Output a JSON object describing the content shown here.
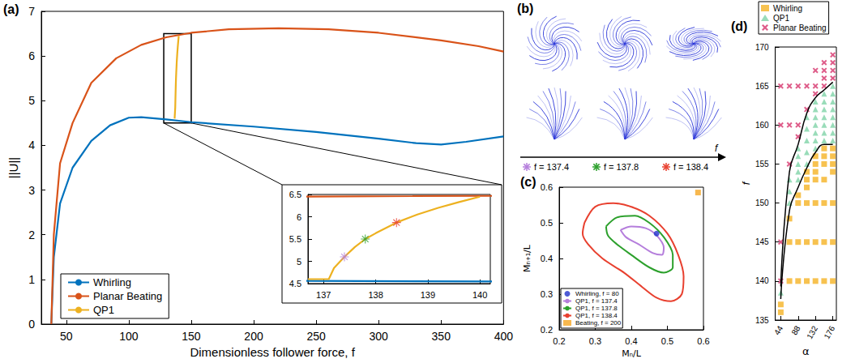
{
  "chart_data": [
    {
      "type": "line",
      "title": "(a)",
      "x_label": "Dimensionless follower force, f",
      "y_label": "||U||",
      "xlim": [
        30,
        400
      ],
      "xticks": [
        50,
        100,
        150,
        200,
        250,
        300,
        350,
        400
      ],
      "ylim": [
        0,
        7
      ],
      "yticks": [
        0,
        1,
        2,
        3,
        4,
        5,
        6,
        7
      ],
      "grid": false,
      "legend": "lower left",
      "series": [
        {
          "name": "Whirling",
          "color": "#0072BD",
          "x": [
            38,
            40,
            45,
            55,
            70,
            85,
            100,
            110,
            130,
            150,
            200,
            250,
            300,
            330,
            350,
            370,
            400
          ],
          "values": [
            0,
            1.5,
            2.7,
            3.5,
            4.1,
            4.45,
            4.62,
            4.63,
            4.58,
            4.52,
            4.42,
            4.3,
            4.15,
            4.05,
            4.02,
            4.08,
            4.2
          ]
        },
        {
          "name": "Planar Beating",
          "color": "#D95319",
          "x": [
            38,
            40,
            45,
            55,
            70,
            90,
            110,
            130,
            150,
            180,
            220,
            260,
            300,
            350,
            380,
            400
          ],
          "values": [
            0,
            2,
            3.6,
            4.5,
            5.4,
            5.95,
            6.25,
            6.42,
            6.52,
            6.6,
            6.62,
            6.6,
            6.52,
            6.35,
            6.22,
            6.1
          ]
        },
        {
          "name": "QP1",
          "color": "#EDB120",
          "x": [
            136.7,
            137.1,
            137.2,
            137.4,
            137.6,
            137.8,
            138,
            138.4,
            138.8,
            139.2,
            139.6,
            140
          ],
          "values": [
            4.6,
            4.6,
            4.85,
            5.1,
            5.32,
            5.5,
            5.63,
            5.87,
            6.05,
            6.2,
            6.33,
            6.45
          ]
        }
      ],
      "zoom_box": {
        "xlim": [
          128,
          150
        ],
        "ylim": [
          4.5,
          6.5
        ]
      },
      "inset": {
        "xlim": [
          136.7,
          140.2
        ],
        "xticks": [
          137,
          138,
          139,
          140
        ],
        "ylim": [
          4.5,
          6.5
        ],
        "yticks": [
          4.5,
          5,
          5.5,
          6,
          6.5
        ],
        "marker": "star",
        "highlights": [
          {
            "x": 137.4,
            "value": 5.1,
            "color": "#B57EDC"
          },
          {
            "x": 137.8,
            "value": 5.5,
            "color": "#2CA02C"
          },
          {
            "x": 138.4,
            "value": 5.87,
            "color": "#E8402F"
          }
        ]
      }
    },
    {
      "type": "image",
      "title": "(b)",
      "marker": "star",
      "labels": [
        "f = 137.4",
        "f = 137.8",
        "f = 138.4"
      ],
      "colors": [
        "#B57EDC",
        "#2CA02C",
        "#E8402F"
      ],
      "axis_label": "f",
      "color": "#2A35D8"
    },
    {
      "type": "scatter",
      "title": "(c)",
      "x_label": "Mₙ/L",
      "y_label": "Mₙ₊₁/L",
      "xlim": [
        0.2,
        0.6
      ],
      "xticks": [
        0.2,
        0.3,
        0.4,
        0.5,
        0.6
      ],
      "ylim": [
        0.2,
        0.6
      ],
      "yticks": [
        0.2,
        0.3,
        0.4,
        0.5,
        0.6
      ],
      "grid": false,
      "legend": "lower left",
      "series": [
        {
          "name": "Whirling, f = 80",
          "type": "scatter",
          "marker": "circle",
          "color": "#2233CC",
          "x": [
            0.47
          ],
          "values": [
            0.47
          ]
        },
        {
          "name": "QP1, f = 137.4",
          "type": "line",
          "line_style": "solid",
          "color": "#B57EDC",
          "x": [
            0.37,
            0.4,
            0.44,
            0.47,
            0.49,
            0.485,
            0.46,
            0.42,
            0.385,
            0.37
          ],
          "values": [
            0.48,
            0.49,
            0.485,
            0.465,
            0.43,
            0.41,
            0.415,
            0.44,
            0.46,
            0.48
          ]
        },
        {
          "name": "QP1, f = 137.8",
          "type": "line",
          "line_style": "solid",
          "color": "#2CA02C",
          "x": [
            0.33,
            0.36,
            0.41,
            0.45,
            0.49,
            0.515,
            0.515,
            0.49,
            0.45,
            0.4,
            0.36,
            0.335,
            0.33
          ],
          "values": [
            0.49,
            0.515,
            0.52,
            0.5,
            0.46,
            0.41,
            0.375,
            0.36,
            0.375,
            0.41,
            0.44,
            0.465,
            0.49
          ]
        },
        {
          "name": "QP1, f = 138.4",
          "type": "line",
          "line_style": "solid",
          "color": "#E8402F",
          "x": [
            0.27,
            0.3,
            0.35,
            0.4,
            0.45,
            0.5,
            0.53,
            0.545,
            0.54,
            0.51,
            0.47,
            0.43,
            0.38,
            0.32,
            0.28,
            0.265,
            0.27
          ],
          "values": [
            0.5,
            0.545,
            0.555,
            0.545,
            0.52,
            0.47,
            0.41,
            0.35,
            0.3,
            0.28,
            0.29,
            0.32,
            0.36,
            0.4,
            0.44,
            0.47,
            0.5
          ]
        },
        {
          "name": "Beating, f = 200",
          "type": "scatter",
          "marker": "square",
          "color": "#F5A623",
          "x": [
            0.585
          ],
          "values": [
            0.585
          ]
        }
      ]
    },
    {
      "type": "scatter",
      "title": "(d)",
      "x_label": "α",
      "y_label": "f",
      "xlim": [
        30,
        185
      ],
      "xticks": [
        44,
        88,
        132,
        176
      ],
      "ylim": [
        135,
        170
      ],
      "yticks": [
        135,
        140,
        145,
        150,
        155,
        160,
        165,
        170
      ],
      "grid": false,
      "legend": "top",
      "series": [
        {
          "name": "Whirling",
          "marker": "square",
          "color": "#F5B324",
          "x": [
            44,
            44,
            66,
            66,
            66,
            88,
            88,
            88,
            88,
            110,
            110,
            110,
            110,
            110,
            110,
            132,
            132,
            132,
            132,
            132,
            132,
            132,
            154,
            154,
            154,
            154,
            154,
            154,
            154,
            176,
            176,
            176,
            176,
            176,
            176,
            176
          ],
          "values": [
            136,
            137,
            140,
            145,
            148,
            140,
            145,
            150,
            151,
            140,
            145,
            150,
            152,
            153,
            154,
            140,
            145,
            150,
            153,
            154,
            155,
            156,
            140,
            145,
            150,
            153,
            155,
            156,
            157,
            140,
            145,
            150,
            154,
            155,
            156,
            157
          ]
        },
        {
          "name": "QP1",
          "marker": "triangle",
          "color": "#7FD3A8",
          "x": [
            44,
            66,
            66,
            66,
            88,
            88,
            88,
            88,
            88,
            110,
            110,
            110,
            110,
            110,
            132,
            132,
            132,
            132,
            132,
            132,
            132,
            154,
            154,
            154,
            154,
            154,
            154,
            154,
            176,
            176,
            176,
            176,
            176,
            176,
            176,
            176
          ],
          "values": [
            138.5,
            150,
            151.5,
            153,
            153,
            154,
            155,
            156,
            157,
            155,
            156.5,
            158,
            159.5,
            161,
            157,
            158,
            159,
            160,
            161,
            162,
            163,
            158,
            159,
            160,
            161,
            162,
            163,
            164,
            158,
            159,
            160,
            161,
            162,
            163,
            164,
            165
          ]
        },
        {
          "name": "Planar Beating",
          "marker": "x",
          "color": "#D6336C",
          "x": [
            44,
            44,
            44,
            44,
            66,
            66,
            66,
            88,
            88,
            88,
            110,
            110,
            132,
            132,
            132,
            154,
            154,
            154,
            154,
            176,
            176,
            176,
            176
          ],
          "values": [
            140,
            145,
            160,
            165,
            155,
            160,
            165,
            158.5,
            160,
            165,
            162,
            165,
            164,
            165,
            167,
            165,
            166,
            167,
            168,
            166,
            167,
            168,
            169
          ]
        }
      ],
      "boundaries": [
        {
          "type": "line",
          "color": "#000000",
          "x": [
            44,
            66,
            88,
            110,
            132,
            154,
            176
          ],
          "values": [
            137.7,
            149,
            152,
            154.5,
            156.5,
            157.5,
            157.5
          ]
        },
        {
          "type": "line",
          "color": "#000000",
          "x": [
            44,
            66,
            88,
            110,
            132,
            154,
            176
          ],
          "values": [
            139.3,
            154,
            157.5,
            161.5,
            163.5,
            164.5,
            165.5
          ]
        }
      ]
    }
  ]
}
